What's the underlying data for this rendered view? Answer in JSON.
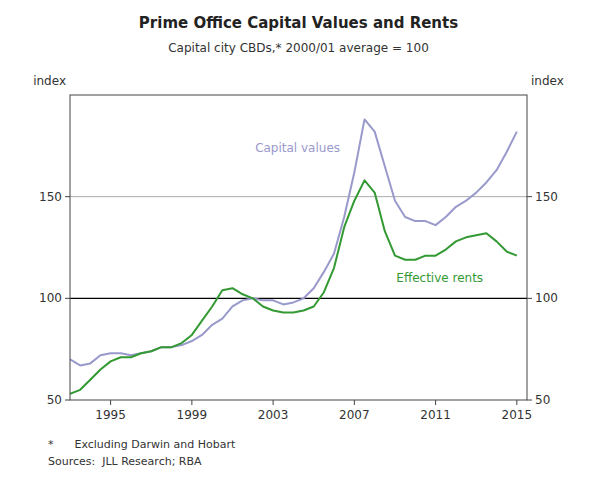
{
  "chart_data": {
    "type": "line",
    "title": "Prime Office Capital Values and Rents",
    "subtitle": "Capital city CBDs,* 2000/01 average = 100",
    "y_label": "index",
    "y2_label": "index",
    "footnotes": [
      "*      Excluding Darwin and Hobart",
      "Sources:  JLL Research; RBA"
    ],
    "xlim": [
      1993.0,
      2015.5
    ],
    "xticks": [
      1995,
      1999,
      2003,
      2007,
      2011,
      2015
    ],
    "ylim": [
      50,
      200
    ],
    "yticks": [
      50,
      100,
      150
    ],
    "y2lim": [
      50,
      200
    ],
    "y2ticks": [
      50,
      100,
      150
    ],
    "hlines": [
      {
        "value": 100,
        "color": "#000000"
      },
      {
        "value": 150,
        "color": "#aaaaaa"
      }
    ],
    "x": [
      1993.0,
      1993.5,
      1994.0,
      1994.5,
      1995.0,
      1995.5,
      1996.0,
      1996.5,
      1997.0,
      1997.5,
      1998.0,
      1998.5,
      1999.0,
      1999.5,
      2000.0,
      2000.5,
      2001.0,
      2001.5,
      2002.0,
      2002.5,
      2003.0,
      2003.5,
      2004.0,
      2004.5,
      2005.0,
      2005.5,
      2006.0,
      2006.5,
      2007.0,
      2007.5,
      2008.0,
      2008.5,
      2009.0,
      2009.5,
      2010.0,
      2010.5,
      2011.0,
      2011.5,
      2012.0,
      2012.5,
      2013.0,
      2013.5,
      2014.0,
      2014.5,
      2015.0
    ],
    "series": [
      {
        "name": "Capital values",
        "color": "#9999cc",
        "values": [
          70,
          67,
          68,
          72,
          73,
          73,
          72,
          73,
          74,
          76,
          76,
          77,
          79,
          82,
          87,
          90,
          96,
          99,
          100,
          99,
          99,
          97,
          98,
          100,
          105,
          113,
          122,
          140,
          162,
          188,
          182,
          165,
          148,
          140,
          138,
          138,
          136,
          140,
          145,
          148,
          152,
          157,
          163,
          172,
          182
        ]
      },
      {
        "name": "Effective rents",
        "color": "#339933",
        "values": [
          53,
          55,
          60,
          65,
          69,
          71,
          71,
          73,
          74,
          76,
          76,
          78,
          82,
          89,
          96,
          104,
          105,
          102,
          100,
          96,
          94,
          93,
          93,
          94,
          96,
          103,
          115,
          135,
          148,
          158,
          152,
          133,
          121,
          119,
          119,
          121,
          121,
          124,
          128,
          130,
          131,
          132,
          128,
          123,
          121
        ]
      }
    ]
  }
}
